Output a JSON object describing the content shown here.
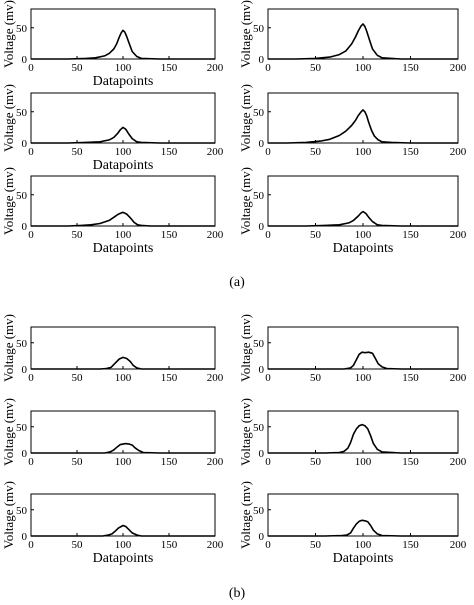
{
  "figure": {
    "panel_labels": [
      "(a)",
      "(b)"
    ]
  },
  "chart_data": [
    {
      "type": "line",
      "panel": "(a)",
      "position": "row 1, left",
      "xlabel": "Datapoints",
      "ylabel": "Voltage (mv)",
      "xlim": [
        0,
        200
      ],
      "ylim": [
        0,
        80
      ],
      "xticks": [
        0,
        50,
        100,
        150,
        200
      ],
      "yticks": [
        0,
        50
      ],
      "series": [
        {
          "x": [
            0,
            40,
            60,
            70,
            80,
            85,
            90,
            93,
            96,
            98,
            100,
            102,
            104,
            107,
            110,
            115,
            120,
            140,
            200
          ],
          "y": [
            0,
            0,
            1,
            2,
            5,
            9,
            16,
            24,
            35,
            42,
            46,
            43,
            36,
            24,
            12,
            4,
            1,
            0,
            0
          ]
        }
      ]
    },
    {
      "type": "line",
      "panel": "(a)",
      "position": "row 1, right",
      "xlabel": "",
      "ylabel": "Voltage (mv)",
      "xlim": [
        0,
        200
      ],
      "ylim": [
        0,
        80
      ],
      "xticks": [
        0,
        50,
        100,
        150,
        200
      ],
      "yticks": [
        0,
        50
      ],
      "series": [
        {
          "x": [
            0,
            30,
            50,
            65,
            75,
            82,
            88,
            92,
            95,
            98,
            100,
            102,
            104,
            107,
            110,
            115,
            120,
            140,
            200
          ],
          "y": [
            0,
            0,
            1,
            3,
            7,
            13,
            24,
            35,
            45,
            53,
            56,
            52,
            44,
            30,
            16,
            6,
            2,
            0,
            0
          ]
        }
      ]
    },
    {
      "type": "line",
      "panel": "(a)",
      "position": "row 2, left",
      "xlabel": "Datapoints",
      "ylabel": "Voltage (mv)",
      "xlim": [
        0,
        200
      ],
      "ylim": [
        0,
        80
      ],
      "xticks": [
        0,
        50,
        100,
        150,
        200
      ],
      "yticks": [
        0,
        50
      ],
      "series": [
        {
          "x": [
            0,
            40,
            60,
            75,
            85,
            90,
            94,
            97,
            100,
            103,
            106,
            110,
            115,
            120,
            140,
            200
          ],
          "y": [
            0,
            0,
            1,
            2,
            5,
            9,
            15,
            21,
            25,
            22,
            15,
            7,
            2,
            1,
            0,
            0
          ]
        }
      ]
    },
    {
      "type": "line",
      "panel": "(a)",
      "position": "row 2, right",
      "xlabel": "",
      "ylabel": "Voltage (mv)",
      "xlim": [
        0,
        200
      ],
      "ylim": [
        0,
        80
      ],
      "xticks": [
        0,
        50,
        100,
        150,
        200
      ],
      "yticks": [
        0,
        50
      ],
      "series": [
        {
          "x": [
            0,
            20,
            40,
            55,
            65,
            75,
            82,
            88,
            92,
            95,
            98,
            100,
            102,
            104,
            106,
            109,
            112,
            116,
            120,
            130,
            150,
            200
          ],
          "y": [
            0,
            0,
            1,
            3,
            6,
            12,
            19,
            28,
            36,
            44,
            50,
            53,
            50,
            43,
            33,
            20,
            11,
            5,
            2,
            1,
            0,
            0
          ]
        }
      ]
    },
    {
      "type": "line",
      "panel": "(a)",
      "position": "row 3, left",
      "xlabel": "Datapoints",
      "ylabel": "Voltage (mv)",
      "xlim": [
        0,
        200
      ],
      "ylim": [
        0,
        80
      ],
      "xticks": [
        0,
        50,
        100,
        150,
        200
      ],
      "yticks": [
        0,
        50
      ],
      "series": [
        {
          "x": [
            0,
            40,
            55,
            65,
            75,
            85,
            90,
            95,
            100,
            104,
            108,
            112,
            116,
            120,
            130,
            200
          ],
          "y": [
            0,
            0,
            1,
            2,
            4,
            9,
            14,
            19,
            22,
            19,
            13,
            6,
            2,
            1,
            0,
            0
          ]
        }
      ]
    },
    {
      "type": "line",
      "panel": "(a)",
      "position": "row 3, right",
      "xlabel": "Datapoints",
      "ylabel": "Voltage (mv)",
      "xlim": [
        0,
        200
      ],
      "ylim": [
        0,
        80
      ],
      "xticks": [
        0,
        50,
        100,
        150,
        200
      ],
      "yticks": [
        0,
        50
      ],
      "series": [
        {
          "x": [
            0,
            40,
            60,
            75,
            85,
            90,
            95,
            98,
            100,
            103,
            106,
            110,
            115,
            120,
            140,
            200
          ],
          "y": [
            0,
            0,
            1,
            2,
            5,
            9,
            16,
            21,
            23,
            20,
            14,
            7,
            2,
            1,
            0,
            0
          ]
        }
      ]
    },
    {
      "type": "line",
      "panel": "(b)",
      "position": "row 1, left",
      "xlabel": "",
      "ylabel": "Voltage (mv)",
      "xlim": [
        0,
        200
      ],
      "ylim": [
        0,
        80
      ],
      "xticks": [
        0,
        50,
        100,
        150,
        200
      ],
      "yticks": [
        0,
        50
      ],
      "series": [
        {
          "x": [
            0,
            60,
            75,
            82,
            87,
            92,
            96,
            100,
            104,
            108,
            111,
            115,
            120,
            140,
            200
          ],
          "y": [
            0,
            0,
            0,
            1,
            3,
            12,
            19,
            22,
            20,
            14,
            7,
            2,
            0,
            0,
            0
          ]
        }
      ]
    },
    {
      "type": "line",
      "panel": "(b)",
      "position": "row 1, right",
      "xlabel": "",
      "ylabel": "Voltage (mv)",
      "xlim": [
        0,
        200
      ],
      "ylim": [
        0,
        80
      ],
      "xticks": [
        0,
        50,
        100,
        150,
        200
      ],
      "yticks": [
        0,
        50
      ],
      "series": [
        {
          "x": [
            0,
            60,
            80,
            87,
            90,
            93,
            96,
            99,
            102,
            106,
            110,
            113,
            116,
            120,
            125,
            140,
            200
          ],
          "y": [
            0,
            0,
            0,
            2,
            7,
            18,
            28,
            32,
            31,
            32,
            30,
            20,
            10,
            4,
            1,
            0,
            0
          ]
        }
      ]
    },
    {
      "type": "line",
      "panel": "(b)",
      "position": "row 2, left",
      "xlabel": "",
      "ylabel": "Voltage (mv)",
      "xlim": [
        0,
        200
      ],
      "ylim": [
        0,
        80
      ],
      "xticks": [
        0,
        50,
        100,
        150,
        200
      ],
      "yticks": [
        0,
        50
      ],
      "series": [
        {
          "x": [
            0,
            60,
            80,
            86,
            90,
            94,
            97,
            100,
            103,
            107,
            110,
            113,
            117,
            122,
            140,
            200
          ],
          "y": [
            0,
            0,
            0,
            2,
            6,
            12,
            16,
            17,
            18,
            17,
            15,
            10,
            5,
            1,
            0,
            0
          ]
        }
      ]
    },
    {
      "type": "line",
      "panel": "(b)",
      "position": "row 2, right",
      "xlabel": "",
      "ylabel": "Voltage (mv)",
      "xlim": [
        0,
        200
      ],
      "ylim": [
        0,
        80
      ],
      "xticks": [
        0,
        50,
        100,
        150,
        200
      ],
      "yticks": [
        0,
        50
      ],
      "series": [
        {
          "x": [
            0,
            60,
            75,
            80,
            84,
            87,
            90,
            93,
            96,
            99,
            102,
            105,
            108,
            111,
            115,
            120,
            140,
            200
          ],
          "y": [
            0,
            0,
            1,
            3,
            9,
            20,
            36,
            46,
            52,
            54,
            52,
            46,
            33,
            18,
            7,
            2,
            0,
            0
          ]
        }
      ]
    },
    {
      "type": "line",
      "panel": "(b)",
      "position": "row 3, left",
      "xlabel": "Datapoints",
      "ylabel": "Voltage (mv)",
      "xlim": [
        0,
        200
      ],
      "ylim": [
        0,
        80
      ],
      "xticks": [
        0,
        50,
        100,
        150,
        200
      ],
      "yticks": [
        0,
        50
      ],
      "series": [
        {
          "x": [
            0,
            60,
            78,
            84,
            88,
            92,
            95,
            98,
            100,
            103,
            106,
            110,
            115,
            120,
            140,
            200
          ],
          "y": [
            0,
            0,
            0,
            2,
            4,
            10,
            15,
            18,
            20,
            18,
            13,
            6,
            2,
            0,
            0,
            0
          ]
        }
      ]
    },
    {
      "type": "line",
      "panel": "(b)",
      "position": "row 3, right",
      "xlabel": "Datapoints",
      "ylabel": "Voltage (mv)",
      "xlim": [
        0,
        200
      ],
      "ylim": [
        0,
        80
      ],
      "xticks": [
        0,
        50,
        100,
        150,
        200
      ],
      "yticks": [
        0,
        50
      ],
      "series": [
        {
          "x": [
            0,
            60,
            78,
            83,
            87,
            90,
            93,
            96,
            99,
            102,
            105,
            108,
            111,
            115,
            120,
            140,
            200
          ],
          "y": [
            0,
            0,
            1,
            2,
            6,
            15,
            23,
            28,
            30,
            29,
            27,
            20,
            11,
            4,
            1,
            0,
            0
          ]
        }
      ]
    }
  ]
}
